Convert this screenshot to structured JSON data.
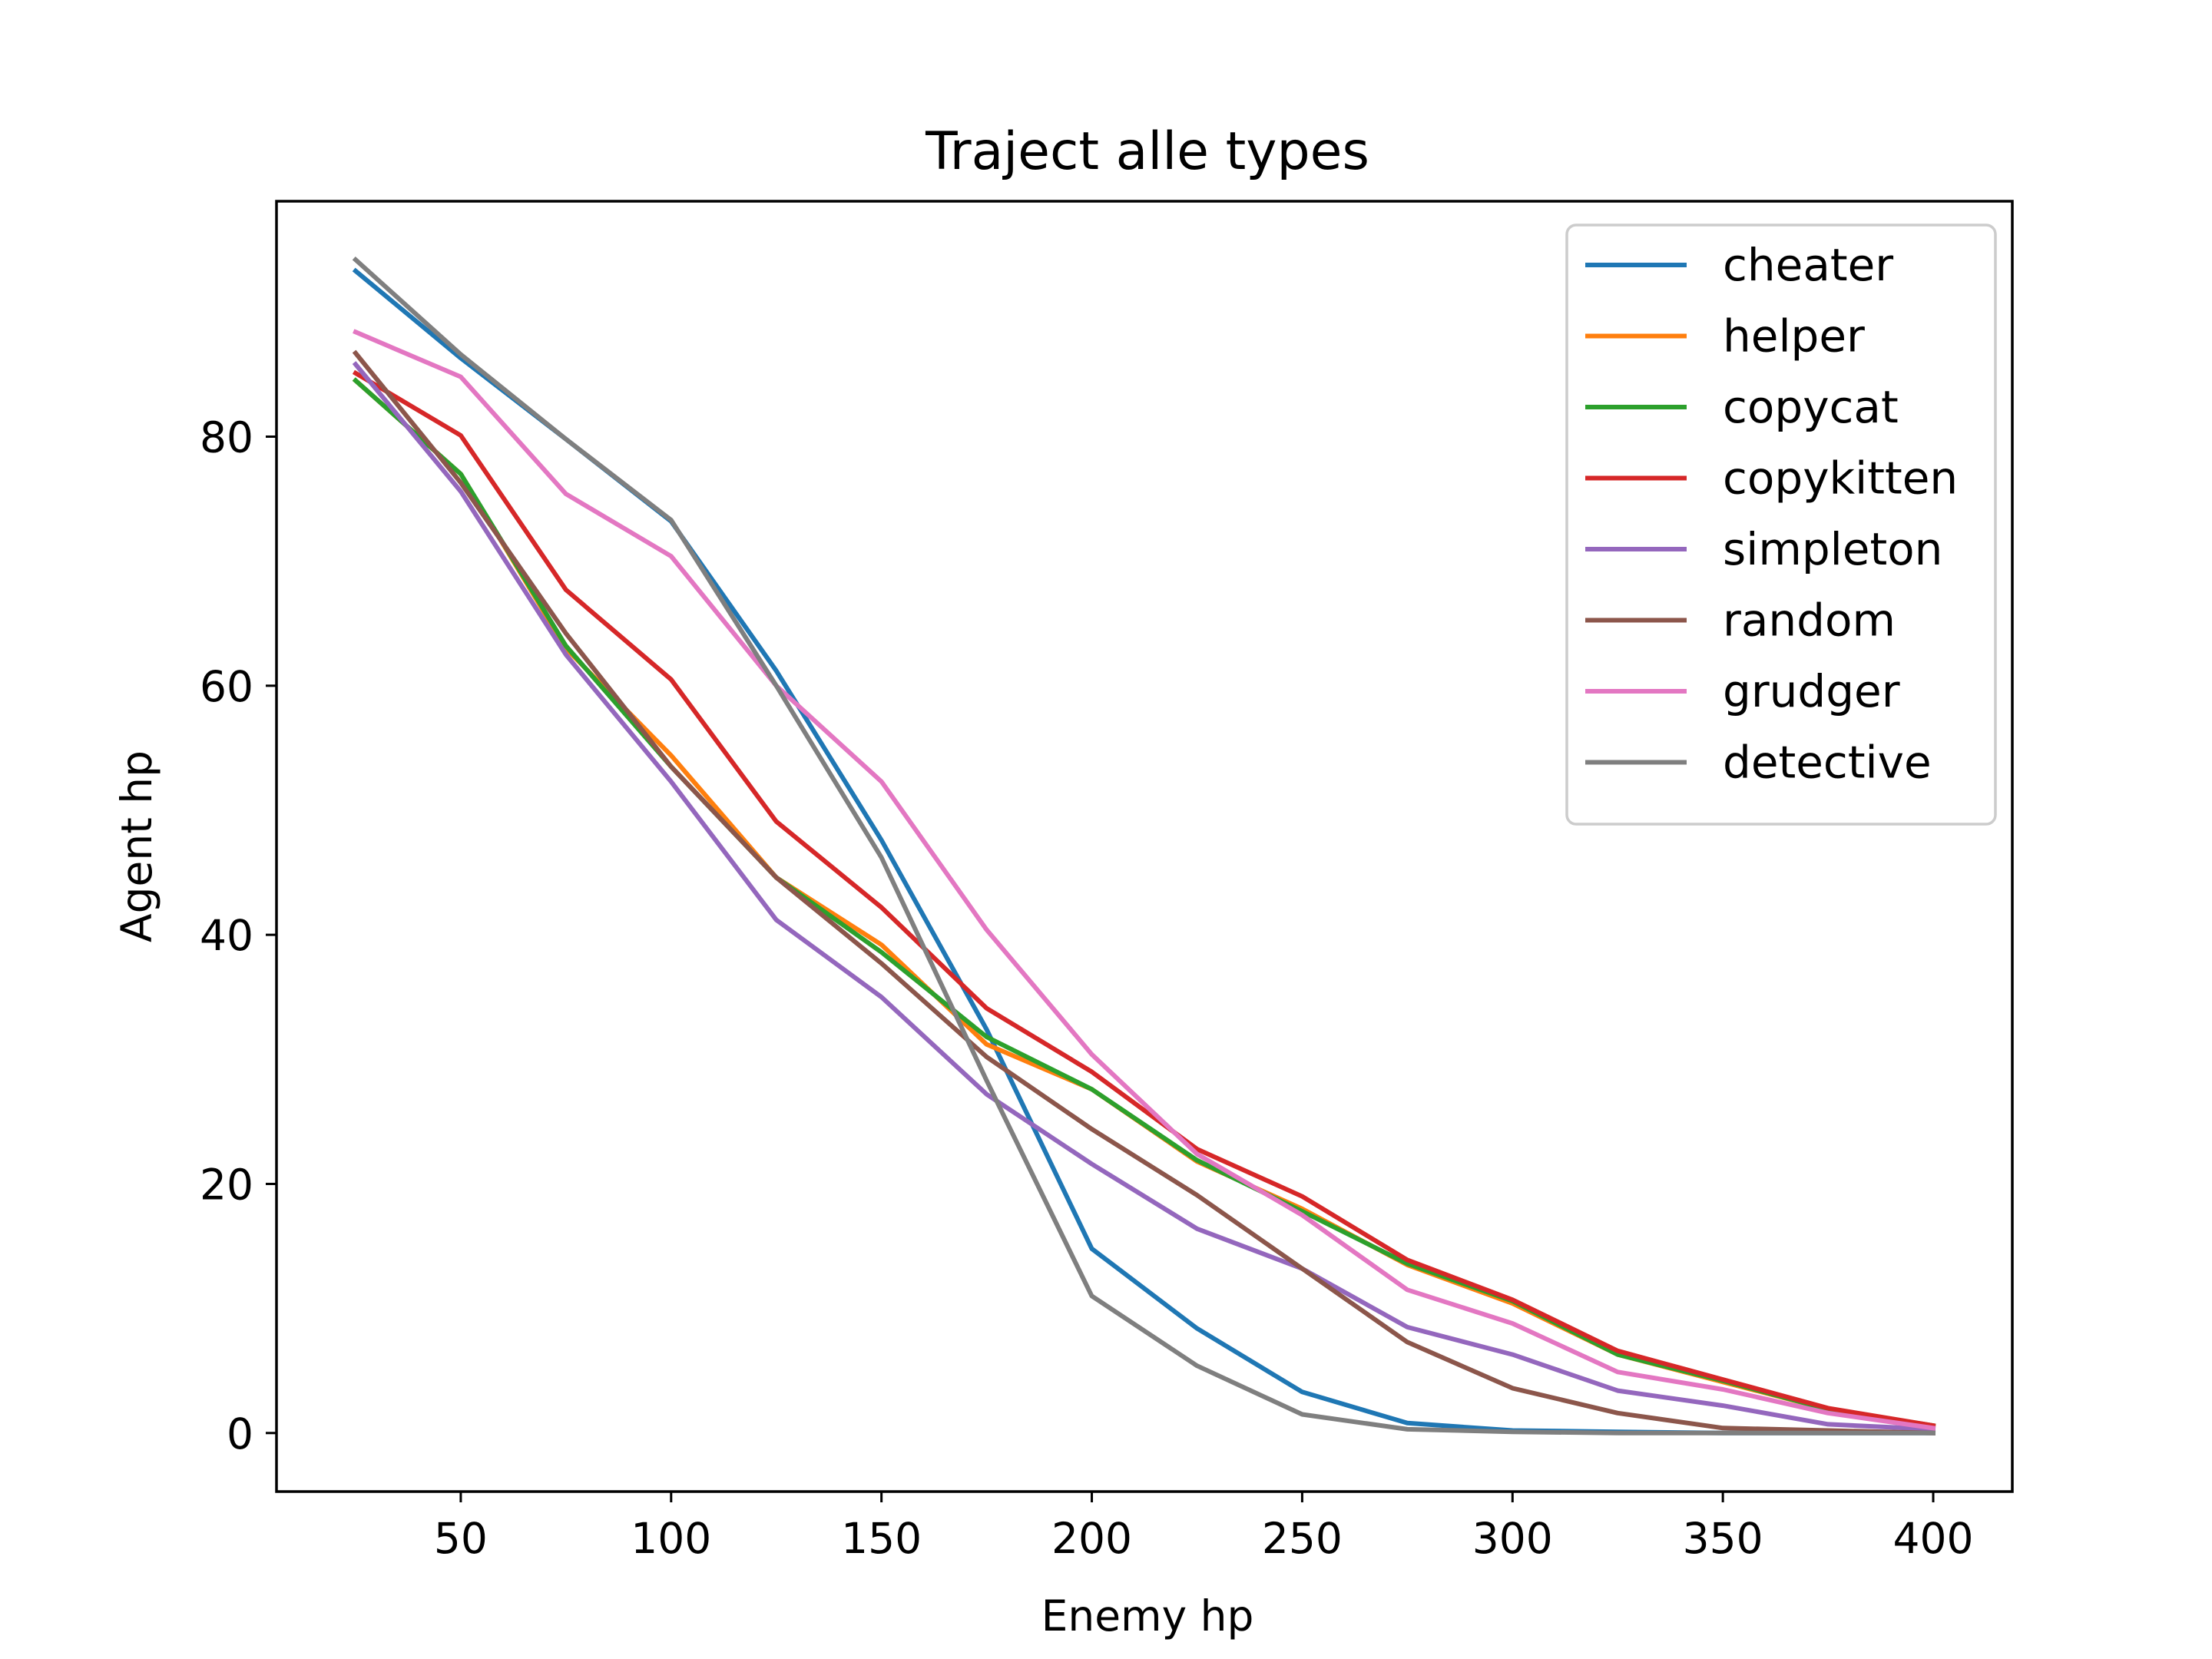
{
  "chart_data": {
    "type": "line",
    "title": "Traject alle types",
    "xlabel": "Enemy hp",
    "ylabel": "Agent hp",
    "x": [
      25,
      50,
      75,
      100,
      125,
      150,
      175,
      200,
      225,
      250,
      275,
      300,
      325,
      350,
      375,
      400
    ],
    "xlim": [
      6.2,
      418.8
    ],
    "ylim": [
      -4.7,
      98.9
    ],
    "xticks": [
      50,
      100,
      150,
      200,
      250,
      300,
      350,
      400
    ],
    "yticks": [
      0,
      20,
      40,
      60,
      80
    ],
    "grid": false,
    "legend_position": "top-right",
    "series": [
      {
        "name": "cheater",
        "color": "#1f77b4",
        "values": [
          93.3,
          86.3,
          79.8,
          73.2,
          61.2,
          47.6,
          32.4,
          14.8,
          8.4,
          3.3,
          0.8,
          0.2,
          0.1,
          0.0,
          0.0,
          0.0
        ]
      },
      {
        "name": "helper",
        "color": "#ff7f0e",
        "values": [
          84.5,
          77.0,
          63.0,
          54.4,
          44.6,
          39.2,
          31.2,
          27.6,
          21.8,
          18.0,
          13.5,
          10.4,
          6.3,
          4.1,
          1.9,
          0.5
        ]
      },
      {
        "name": "copycat",
        "color": "#2ca02c",
        "values": [
          84.5,
          77.0,
          63.2,
          53.5,
          44.6,
          38.6,
          31.8,
          27.6,
          21.9,
          17.8,
          13.6,
          10.6,
          6.3,
          4.2,
          1.9,
          0.6
        ]
      },
      {
        "name": "copykitten",
        "color": "#d62728",
        "values": [
          85.1,
          80.1,
          67.7,
          60.5,
          49.1,
          42.2,
          34.1,
          29.0,
          22.8,
          19.0,
          13.9,
          10.7,
          6.6,
          4.3,
          2.0,
          0.6
        ]
      },
      {
        "name": "simpleton",
        "color": "#9467bd",
        "values": [
          85.8,
          75.6,
          62.5,
          52.3,
          41.2,
          35.0,
          27.2,
          21.6,
          16.4,
          13.2,
          8.5,
          6.3,
          3.4,
          2.2,
          0.7,
          0.3
        ]
      },
      {
        "name": "random",
        "color": "#8c564b",
        "values": [
          86.7,
          76.3,
          64.2,
          53.5,
          44.6,
          37.7,
          30.2,
          24.4,
          19.1,
          13.2,
          7.3,
          3.6,
          1.6,
          0.4,
          0.2,
          0.0
        ]
      },
      {
        "name": "grudger",
        "color": "#e377c2",
        "values": [
          88.4,
          84.8,
          75.4,
          70.4,
          60.0,
          52.3,
          40.4,
          30.4,
          22.4,
          17.5,
          11.5,
          8.8,
          4.9,
          3.5,
          1.6,
          0.4
        ]
      },
      {
        "name": "detective",
        "color": "#7f7f7f",
        "values": [
          94.2,
          86.6,
          79.8,
          73.3,
          60.0,
          46.2,
          28.3,
          11.0,
          5.4,
          1.5,
          0.3,
          0.1,
          0.0,
          0.0,
          0.0,
          0.0
        ]
      }
    ]
  }
}
